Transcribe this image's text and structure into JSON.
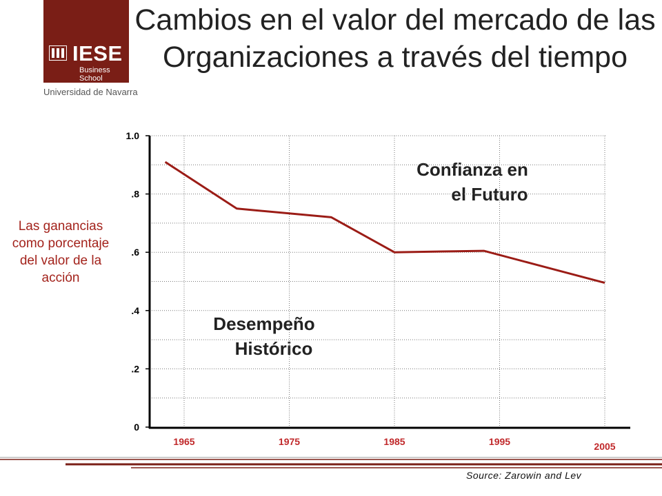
{
  "header": {
    "logo_name": "IESE",
    "logo_school": "Business School",
    "logo_university": "Universidad de Navarra",
    "logo_color": "#7a1e16"
  },
  "chart_data": {
    "type": "line",
    "title": "Cambios en el valor del mercado de las Organizaciones a través del tiempo",
    "ylabel": "Las ganancias como porcentaje del valor de la acción",
    "xlabel": "",
    "ylim": [
      0,
      1.0
    ],
    "xlim": [
      1965,
      2005
    ],
    "y_ticks": [
      {
        "value": 0,
        "label": "0"
      },
      {
        "value": 0.2,
        "label": ".2"
      },
      {
        "value": 0.4,
        "label": ".4"
      },
      {
        "value": 0.6,
        "label": ".6"
      },
      {
        "value": 0.8,
        "label": ".8"
      },
      {
        "value": 1.0,
        "label": "1.0"
      }
    ],
    "x_ticks": [
      {
        "value": 1965,
        "label": "1965"
      },
      {
        "value": 1975,
        "label": "1975"
      },
      {
        "value": 1985,
        "label": "1985"
      },
      {
        "value": 1995,
        "label": "1995"
      },
      {
        "value": 2005,
        "label": "2005"
      }
    ],
    "series": [
      {
        "color": "#9b1c16",
        "points": [
          {
            "x": 1963.2,
            "y": 0.91
          },
          {
            "x": 1970,
            "y": 0.75
          },
          {
            "x": 1979,
            "y": 0.72
          },
          {
            "x": 1985,
            "y": 0.6
          },
          {
            "x": 1993.5,
            "y": 0.605
          },
          {
            "x": 2005,
            "y": 0.495
          }
        ]
      }
    ],
    "annotations": [
      {
        "text_line1": "Confianza en",
        "text_line2": "el Futuro"
      },
      {
        "text_line1": "Desempeño",
        "text_line2": "Histórico"
      }
    ],
    "grid": true,
    "source": "Source: Zarowin and Lev"
  }
}
